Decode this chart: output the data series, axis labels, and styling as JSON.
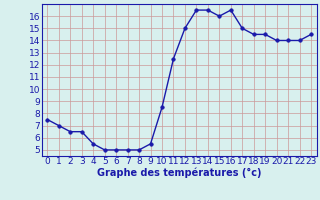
{
  "hours": [
    0,
    1,
    2,
    3,
    4,
    5,
    6,
    7,
    8,
    9,
    10,
    11,
    12,
    13,
    14,
    15,
    16,
    17,
    18,
    19,
    20,
    21,
    22,
    23
  ],
  "temperatures": [
    7.5,
    7.0,
    6.5,
    6.5,
    5.5,
    5.0,
    5.0,
    5.0,
    5.0,
    5.5,
    8.5,
    12.5,
    15.0,
    16.5,
    16.5,
    16.0,
    16.5,
    15.0,
    14.5,
    14.5,
    14.0,
    14.0,
    14.0,
    14.5
  ],
  "line_color": "#1a1aaa",
  "marker": "o",
  "markersize": 2.5,
  "linewidth": 1.0,
  "xlabel": "Graphe des températures (°c)",
  "xlabel_fontsize": 7,
  "ylim": [
    4.5,
    17.0
  ],
  "yticks": [
    5,
    6,
    7,
    8,
    9,
    10,
    11,
    12,
    13,
    14,
    15,
    16
  ],
  "xticks": [
    0,
    1,
    2,
    3,
    4,
    5,
    6,
    7,
    8,
    9,
    10,
    11,
    12,
    13,
    14,
    15,
    16,
    17,
    18,
    19,
    20,
    21,
    22,
    23
  ],
  "grid_color": "#cc9999",
  "bg_color": "#d8f0ee",
  "axis_color": "#1a1aaa",
  "tick_labelsize": 6.5,
  "spine_color": "#1a1aaa"
}
